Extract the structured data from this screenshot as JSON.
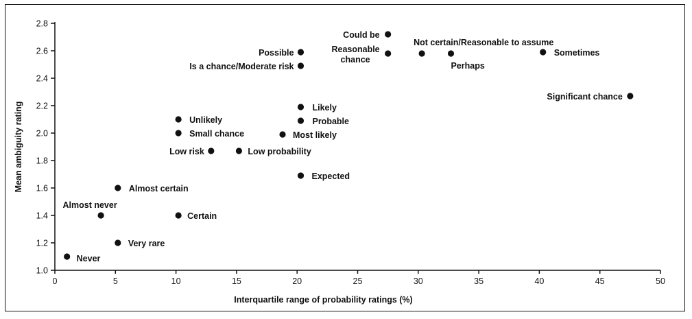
{
  "chart_data": {
    "type": "scatter",
    "title": "",
    "xlabel": "Interquartile range of probability ratings (%)",
    "ylabel": "Mean ambiguity rating",
    "xlim": [
      0,
      50
    ],
    "ylim": [
      1.0,
      2.8
    ],
    "x_ticks": [
      "0",
      "5",
      "10",
      "15",
      "20",
      "25",
      "30",
      "35",
      "40",
      "45",
      "50"
    ],
    "y_ticks": [
      "1.0",
      "1.2",
      "1.4",
      "1.6",
      "1.8",
      "2.0",
      "2.2",
      "2.4",
      "2.6",
      "2.8"
    ],
    "grid": false,
    "color": "#111111",
    "points": [
      {
        "label": "Could be",
        "x": 27.5,
        "y": 2.72
      },
      {
        "label": "Reasonable chance",
        "x": 27.5,
        "y": 2.58
      },
      {
        "label": "Not certain/Reasonable to assume",
        "x": 30.3,
        "y": 2.58
      },
      {
        "label": "Perhaps",
        "x": 32.7,
        "y": 2.58
      },
      {
        "label": "Sometimes",
        "x": 40.3,
        "y": 2.59
      },
      {
        "label": "Possible",
        "x": 20.3,
        "y": 2.59
      },
      {
        "label": "Is a chance/Moderate risk",
        "x": 20.3,
        "y": 2.49
      },
      {
        "label": "Significant chance",
        "x": 47.5,
        "y": 2.27
      },
      {
        "label": "Likely",
        "x": 20.3,
        "y": 2.19
      },
      {
        "label": "Probable",
        "x": 20.3,
        "y": 2.09
      },
      {
        "label": "Most likely",
        "x": 18.8,
        "y": 1.99
      },
      {
        "label": "Unlikely",
        "x": 10.2,
        "y": 2.1
      },
      {
        "label": "Small chance",
        "x": 10.2,
        "y": 2.0
      },
      {
        "label": "Low risk",
        "x": 12.9,
        "y": 1.87
      },
      {
        "label": "Low probability",
        "x": 15.2,
        "y": 1.87
      },
      {
        "label": "Expected",
        "x": 20.3,
        "y": 1.69
      },
      {
        "label": "Almost certain",
        "x": 5.2,
        "y": 1.6
      },
      {
        "label": "Almost never",
        "x": 3.8,
        "y": 1.4
      },
      {
        "label": "Certain",
        "x": 10.2,
        "y": 1.4
      },
      {
        "label": "Very rare",
        "x": 5.2,
        "y": 1.2
      },
      {
        "label": "Never",
        "x": 1.0,
        "y": 1.1
      }
    ]
  }
}
